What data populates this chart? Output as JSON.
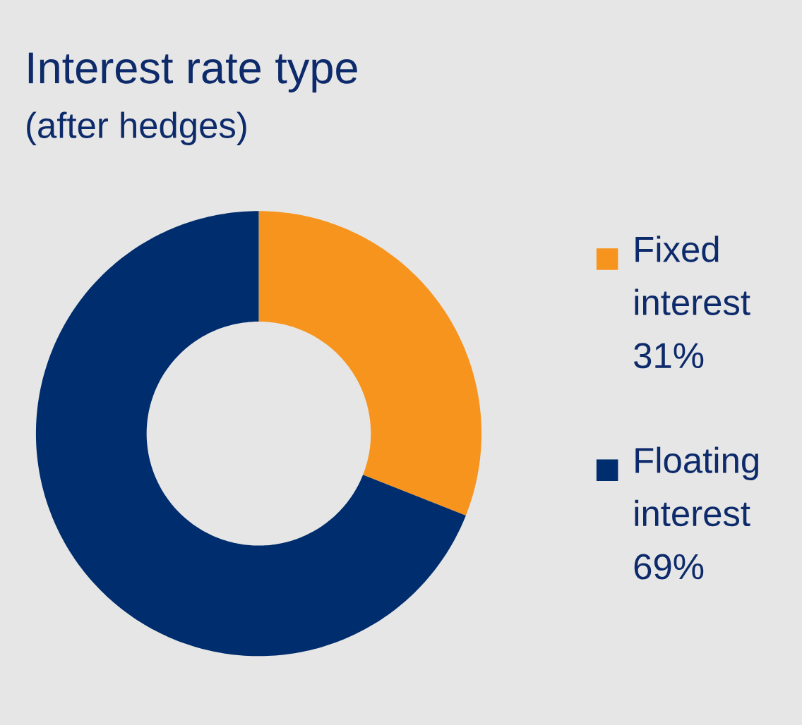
{
  "chart_data": {
    "type": "donut",
    "title": "Interest rate type",
    "subtitle": "(after hedges)",
    "categories": [
      "Fixed interest",
      "Floating interest"
    ],
    "values": [
      31,
      69
    ],
    "value_labels": [
      "31%",
      "69%"
    ],
    "colors": [
      "#f7941d",
      "#002d6d"
    ],
    "legend": "right"
  }
}
